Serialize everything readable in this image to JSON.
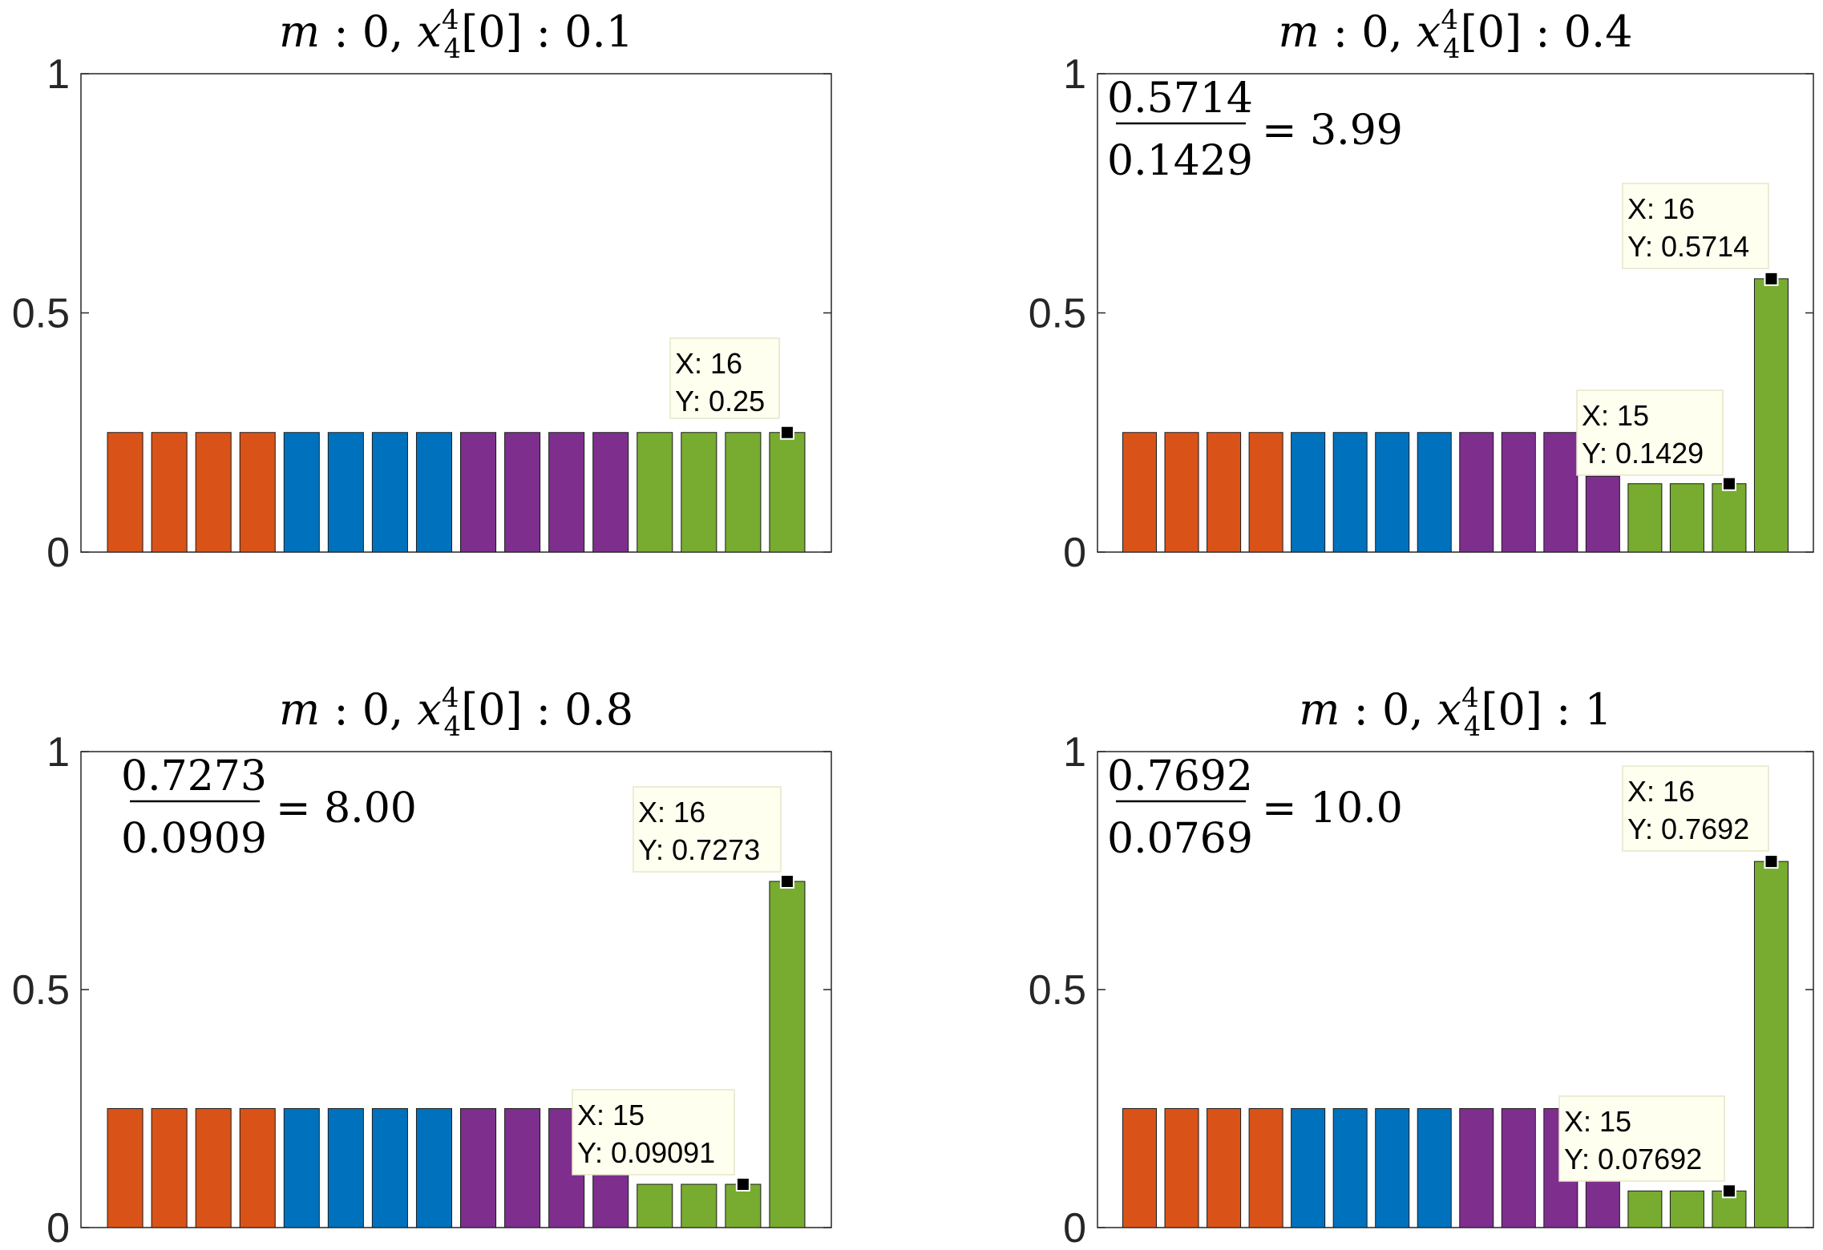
{
  "colors": {
    "orange": "#D95319",
    "blue": "#0072BD",
    "purple": "#7E2F8E",
    "green": "#77AC30",
    "tooltip_bg": "#FFFFF0",
    "tooltip_border": "#E6E6C8",
    "axis": "#262626"
  },
  "chart_data": [
    {
      "type": "bar",
      "title": {
        "m_label": "m",
        "m_value": "0",
        "x_base": "x",
        "x_sup": "4",
        "x_sub": "4",
        "x_index": "[0]",
        "x_value": "0.1"
      },
      "ylim": [
        0,
        1
      ],
      "yticks": [
        "0",
        "0.5",
        "1"
      ],
      "x": [
        1,
        2,
        3,
        4,
        5,
        6,
        7,
        8,
        9,
        10,
        11,
        12,
        13,
        14,
        15,
        16
      ],
      "values": [
        0.25,
        0.25,
        0.25,
        0.25,
        0.25,
        0.25,
        0.25,
        0.25,
        0.25,
        0.25,
        0.25,
        0.25,
        0.25,
        0.25,
        0.25,
        0.25
      ],
      "bar_colors": [
        "orange",
        "orange",
        "orange",
        "orange",
        "blue",
        "blue",
        "blue",
        "blue",
        "purple",
        "purple",
        "purple",
        "purple",
        "green",
        "green",
        "green",
        "green"
      ],
      "ratio": null,
      "datatips": [
        {
          "x": 16,
          "y": 0.25,
          "x_text": "X: 16",
          "y_text": "Y: 0.25"
        }
      ]
    },
    {
      "type": "bar",
      "title": {
        "m_label": "m",
        "m_value": "0",
        "x_base": "x",
        "x_sup": "4",
        "x_sub": "4",
        "x_index": "[0]",
        "x_value": "0.4"
      },
      "ylim": [
        0,
        1
      ],
      "yticks": [
        "0",
        "0.5",
        "1"
      ],
      "x": [
        1,
        2,
        3,
        4,
        5,
        6,
        7,
        8,
        9,
        10,
        11,
        12,
        13,
        14,
        15,
        16
      ],
      "values": [
        0.25,
        0.25,
        0.25,
        0.25,
        0.25,
        0.25,
        0.25,
        0.25,
        0.25,
        0.25,
        0.25,
        0.1587,
        0.1429,
        0.1429,
        0.1429,
        0.5714
      ],
      "bar_colors": [
        "orange",
        "orange",
        "orange",
        "orange",
        "blue",
        "blue",
        "blue",
        "blue",
        "purple",
        "purple",
        "purple",
        "purple",
        "green",
        "green",
        "green",
        "green"
      ],
      "ratio": {
        "numerator": "0.5714",
        "denominator": "0.1429",
        "result": "= 3.99"
      },
      "datatips": [
        {
          "x": 16,
          "y": 0.5714,
          "x_text": "X: 16",
          "y_text": "Y: 0.5714"
        },
        {
          "x": 15,
          "y": 0.1429,
          "x_text": "X: 15",
          "y_text": "Y: 0.1429"
        }
      ]
    },
    {
      "type": "bar",
      "title": {
        "m_label": "m",
        "m_value": "0",
        "x_base": "x",
        "x_sup": "4",
        "x_sub": "4",
        "x_index": "[0]",
        "x_value": "0.8"
      },
      "ylim": [
        0,
        1
      ],
      "yticks": [
        "0",
        "0.5",
        "1"
      ],
      "x": [
        1,
        2,
        3,
        4,
        5,
        6,
        7,
        8,
        9,
        10,
        11,
        12,
        13,
        14,
        15,
        16
      ],
      "values": [
        0.25,
        0.25,
        0.25,
        0.25,
        0.25,
        0.25,
        0.25,
        0.25,
        0.25,
        0.25,
        0.25,
        0.25,
        0.09091,
        0.09091,
        0.09091,
        0.7273
      ],
      "bar_colors": [
        "orange",
        "orange",
        "orange",
        "orange",
        "blue",
        "blue",
        "blue",
        "blue",
        "purple",
        "purple",
        "purple",
        "purple",
        "green",
        "green",
        "green",
        "green"
      ],
      "ratio": {
        "numerator": "0.7273",
        "denominator": "0.0909",
        "result": "= 8.00"
      },
      "datatips": [
        {
          "x": 16,
          "y": 0.7273,
          "x_text": "X: 16",
          "y_text": "Y: 0.7273"
        },
        {
          "x": 15,
          "y": 0.09091,
          "x_text": "X: 15",
          "y_text": "Y: 0.09091"
        }
      ]
    },
    {
      "type": "bar",
      "title": {
        "m_label": "m",
        "m_value": "0",
        "x_base": "x",
        "x_sup": "4",
        "x_sub": "4",
        "x_index": "[0]",
        "x_value": "1"
      },
      "ylim": [
        0,
        1
      ],
      "yticks": [
        "0",
        "0.5",
        "1"
      ],
      "x": [
        1,
        2,
        3,
        4,
        5,
        6,
        7,
        8,
        9,
        10,
        11,
        12,
        13,
        14,
        15,
        16
      ],
      "values": [
        0.25,
        0.25,
        0.25,
        0.25,
        0.25,
        0.25,
        0.25,
        0.25,
        0.25,
        0.25,
        0.25,
        0.1538,
        0.07692,
        0.07692,
        0.07692,
        0.7692
      ],
      "bar_colors": [
        "orange",
        "orange",
        "orange",
        "orange",
        "blue",
        "blue",
        "blue",
        "blue",
        "purple",
        "purple",
        "purple",
        "purple",
        "green",
        "green",
        "green",
        "green"
      ],
      "ratio": {
        "numerator": "0.7692",
        "denominator": "0.0769",
        "result": "= 10.0"
      },
      "datatips": [
        {
          "x": 16,
          "y": 0.7692,
          "x_text": "X: 16",
          "y_text": "Y: 0.7692"
        },
        {
          "x": 15,
          "y": 0.07692,
          "x_text": "X: 15",
          "y_text": "Y: 0.07692"
        }
      ]
    }
  ]
}
